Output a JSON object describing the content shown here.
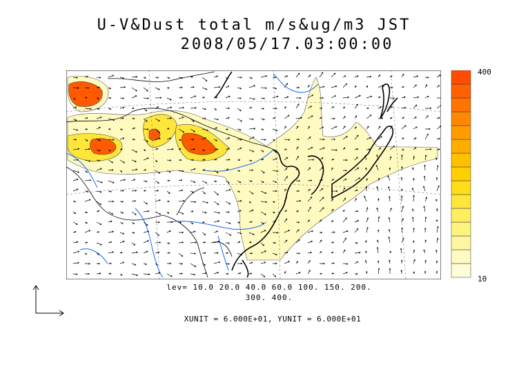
{
  "title": {
    "line1": "U-V&Dust total m/s&ug/m3 JST",
    "line2": "2008/05/17.03:00:00"
  },
  "color_scale": {
    "max_label": "400",
    "min_label": "10",
    "colors": [
      "#fffdd8",
      "#fffac0",
      "#fff7a0",
      "#fff380",
      "#ffee60",
      "#ffe63a",
      "#ffdd18",
      "#ffd000",
      "#ffc000",
      "#ffae00",
      "#ff9c00",
      "#ff8800",
      "#ff7400",
      "#ff6000",
      "#ff4c00"
    ]
  },
  "contour_levels": {
    "line1": "lev= 10.0 20.0 40.0 60.0 100. 150. 200.",
    "line2": "300. 400."
  },
  "units": {
    "text": "XUNIT = 6.000E+01, YUNIT = 6.000E+01"
  }
}
